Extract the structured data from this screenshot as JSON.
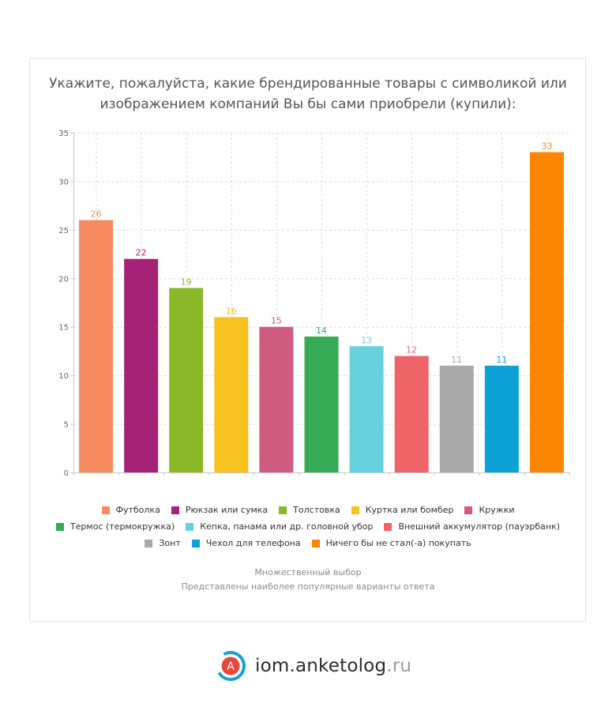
{
  "header": {
    "title_line1": "Укажите, пожалуйста, какие брендированные товары с символикой или",
    "title_line2": "изображением компаний Вы бы сами приобрели (купили):"
  },
  "notes": {
    "line1": "Множественный выбор",
    "line2": "Представлены наиболее популярные варианты ответа"
  },
  "brand": {
    "logo_letter": "A",
    "name": "iom.anketolog",
    "tld": ".ru"
  },
  "colors": {
    "grid": "#dcdcdc",
    "axis": "#c8c8c8",
    "tick_text": "#666666"
  },
  "chart_data": {
    "type": "bar",
    "title": "Укажите, пожалуйста, какие брендированные товары с символикой или изображением компаний Вы бы сами приобрели (купили):",
    "ylim": [
      0,
      35
    ],
    "yticks": [
      0,
      5,
      10,
      15,
      20,
      25,
      30,
      35
    ],
    "grid": true,
    "legend_position": "bottom",
    "categories": [
      "Футболка",
      "Рюкзак или сумка",
      "Толстовка",
      "Куртка или бомбер",
      "Кружки",
      "Термос (термокружка)",
      "Кепка, панама или др. головной убор",
      "Внешний аккумулятор (пауэрбанк)",
      "Зонт",
      "Чехол для телефона",
      "Ничего бы не стал(-а) покупать"
    ],
    "values": [
      26,
      22,
      19,
      16,
      15,
      14,
      13,
      12,
      11,
      11,
      33
    ],
    "colors": [
      "#f58b5f",
      "#a52377",
      "#8ab826",
      "#f7c11f",
      "#cf5b80",
      "#37aa55",
      "#67d1dd",
      "#ee6469",
      "#a9a9a9",
      "#0da2d6",
      "#fc8601"
    ]
  }
}
